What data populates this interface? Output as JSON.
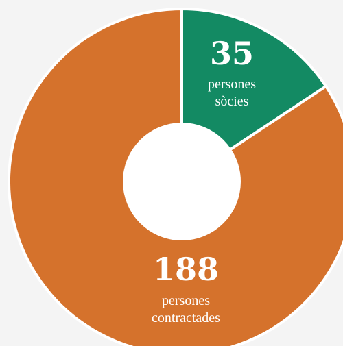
{
  "chart_data": {
    "type": "pie",
    "donut": true,
    "slices": [
      {
        "value": 35,
        "label_line1": "persones",
        "label_line2": "sòcies",
        "color": "#138a63"
      },
      {
        "value": 188,
        "label_line1": "persones",
        "label_line2": "contractades",
        "color": "#d5722c"
      }
    ],
    "background": "#f4f4f4",
    "separator_color": "#ffffff",
    "hole_color": "#ffffff"
  }
}
